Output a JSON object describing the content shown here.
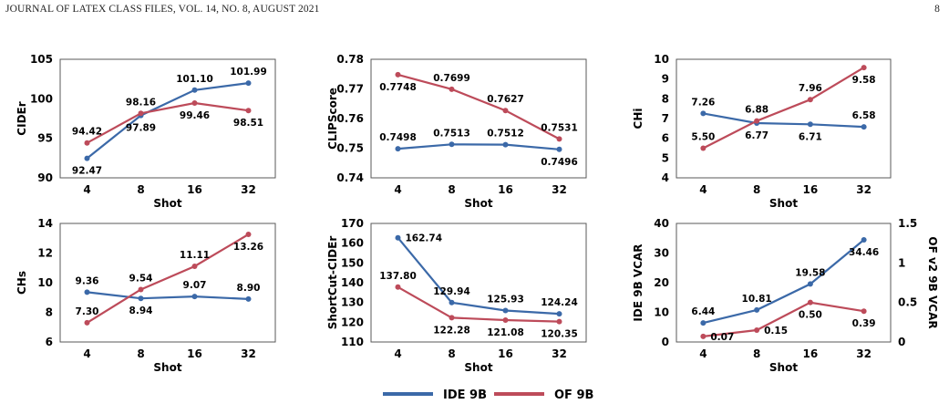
{
  "header": {
    "left": "JOURNAL OF LATEX CLASS FILES, VOL. 14, NO. 8, AUGUST 2021",
    "right": "8"
  },
  "legend": [
    {
      "name": "IDE 9B",
      "color": "#3B69A8"
    },
    {
      "name": "OF 9B",
      "color": "#BD4B5A"
    }
  ],
  "chart_data": [
    {
      "type": "line",
      "xlabel": "Shot",
      "ylabel": "CIDEr",
      "categories": [
        "4",
        "8",
        "16",
        "32"
      ],
      "ylim": [
        90,
        105
      ],
      "yticks": [
        "90",
        "95",
        "100",
        "105"
      ],
      "series": [
        {
          "name": "IDE 9B",
          "values": [
            92.47,
            97.89,
            101.1,
            101.99
          ],
          "labels": [
            "92.47",
            "97.89",
            "101.10",
            "101.99"
          ],
          "label_pos": [
            "below",
            "below",
            "above",
            "above"
          ]
        },
        {
          "name": "OF 9B",
          "values": [
            94.42,
            98.16,
            99.46,
            98.51
          ],
          "labels": [
            "94.42",
            "98.16",
            "99.46",
            "98.51"
          ],
          "label_pos": [
            "above",
            "above",
            "below",
            "below"
          ]
        }
      ]
    },
    {
      "type": "line",
      "xlabel": "Shot",
      "ylabel": "CLIPScore",
      "categories": [
        "4",
        "8",
        "16",
        "32"
      ],
      "ylim": [
        0.74,
        0.78
      ],
      "yticks": [
        "0.74",
        "0.75",
        "0.76",
        "0.77",
        "0.78"
      ],
      "series": [
        {
          "name": "IDE 9B",
          "values": [
            0.7498,
            0.7513,
            0.7512,
            0.7496
          ],
          "labels": [
            "0.7498",
            "0.7513",
            "0.7512",
            "0.7496"
          ],
          "label_pos": [
            "above",
            "above",
            "above",
            "below"
          ]
        },
        {
          "name": "OF 9B",
          "values": [
            0.7748,
            0.7699,
            0.7627,
            0.7531
          ],
          "labels": [
            "0.7748",
            "0.7699",
            "0.7627",
            "0.7531"
          ],
          "label_pos": [
            "below",
            "above",
            "above",
            "above"
          ]
        }
      ]
    },
    {
      "type": "line",
      "xlabel": "Shot",
      "ylabel": "CHi",
      "categories": [
        "4",
        "8",
        "16",
        "32"
      ],
      "ylim": [
        4,
        10
      ],
      "yticks": [
        "4",
        "5",
        "6",
        "7",
        "8",
        "9",
        "10"
      ],
      "series": [
        {
          "name": "IDE 9B",
          "values": [
            7.26,
            6.77,
            6.71,
            6.58
          ],
          "labels": [
            "7.26",
            "6.77",
            "6.71",
            "6.58"
          ],
          "label_pos": [
            "above",
            "below",
            "below",
            "above"
          ]
        },
        {
          "name": "OF 9B",
          "values": [
            5.5,
            6.88,
            7.96,
            9.58
          ],
          "labels": [
            "5.50",
            "6.88",
            "7.96",
            "9.58"
          ],
          "label_pos": [
            "above",
            "above",
            "above",
            "below"
          ]
        }
      ]
    },
    {
      "type": "line",
      "xlabel": "Shot",
      "ylabel": "CHs",
      "categories": [
        "4",
        "8",
        "16",
        "32"
      ],
      "ylim": [
        6,
        14
      ],
      "yticks": [
        "6",
        "8",
        "10",
        "12",
        "14"
      ],
      "series": [
        {
          "name": "IDE 9B",
          "values": [
            9.36,
            8.94,
            9.07,
            8.9
          ],
          "labels": [
            "9.36",
            "8.94",
            "9.07",
            "8.90"
          ],
          "label_pos": [
            "above",
            "below",
            "above",
            "above"
          ]
        },
        {
          "name": "OF 9B",
          "values": [
            7.3,
            9.54,
            11.11,
            13.26
          ],
          "labels": [
            "7.30",
            "9.54",
            "11.11",
            "13.26"
          ],
          "label_pos": [
            "above",
            "above",
            "above",
            "below"
          ]
        }
      ]
    },
    {
      "type": "line",
      "xlabel": "Shot",
      "ylabel": "ShortCut-CIDEr",
      "categories": [
        "4",
        "8",
        "16",
        "32"
      ],
      "ylim": [
        110,
        170
      ],
      "yticks": [
        "110",
        "120",
        "130",
        "140",
        "150",
        "160",
        "170"
      ],
      "series": [
        {
          "name": "IDE 9B",
          "values": [
            162.74,
            129.94,
            125.93,
            124.24
          ],
          "labels": [
            "162.74",
            "129.94",
            "125.93",
            "124.24"
          ],
          "label_pos": [
            "right",
            "above",
            "above",
            "above"
          ]
        },
        {
          "name": "OF 9B",
          "values": [
            137.8,
            122.28,
            121.08,
            120.35
          ],
          "labels": [
            "137.80",
            "122.28",
            "121.08",
            "120.35"
          ],
          "label_pos": [
            "above",
            "below",
            "below",
            "below"
          ]
        }
      ]
    },
    {
      "type": "line",
      "xlabel": "Shot",
      "ylabel": "IDE 9B VCAR",
      "ylabel_right": "OF v2 9B VCAR",
      "categories": [
        "4",
        "8",
        "16",
        "32"
      ],
      "ylim": [
        0,
        40
      ],
      "ylim_right": [
        0,
        1.5
      ],
      "yticks": [
        "0",
        "10",
        "20",
        "30",
        "40"
      ],
      "yticks_right": [
        "0",
        "0.5",
        "1",
        "1.5"
      ],
      "series": [
        {
          "name": "IDE 9B",
          "axis": "left",
          "values": [
            6.44,
            10.81,
            19.58,
            34.46
          ],
          "labels": [
            "6.44",
            "10.81",
            "19.58",
            "34.46"
          ],
          "label_pos": [
            "above",
            "above",
            "above",
            "below"
          ]
        },
        {
          "name": "OF 9B",
          "axis": "right",
          "values": [
            0.07,
            0.15,
            0.5,
            0.39
          ],
          "labels": [
            "0.07",
            "0.15",
            "0.50",
            "0.39"
          ],
          "label_pos": [
            "right",
            "right",
            "below",
            "below"
          ]
        }
      ]
    }
  ]
}
